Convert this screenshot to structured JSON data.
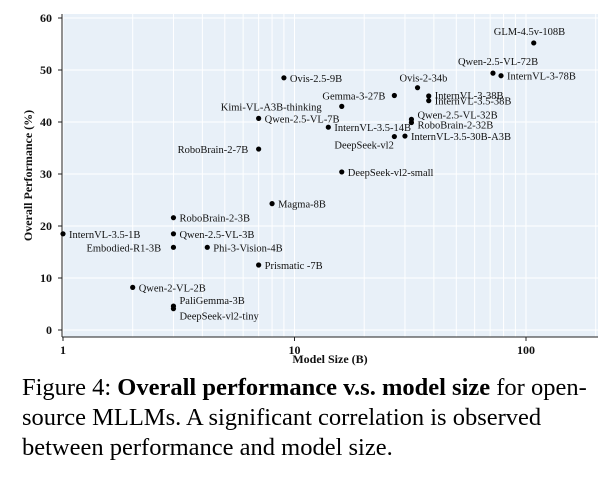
{
  "chart_data": {
    "type": "scatter",
    "xscale": "log",
    "xlabel": "Model Size (B)",
    "ylabel": "Overall Performance (%)",
    "xlim": [
      1,
      200
    ],
    "ylim": [
      0,
      60
    ],
    "xticks": [
      1,
      10,
      100
    ],
    "xtick_labels": [
      "1",
      "10",
      "100"
    ],
    "yticks": [
      0,
      10,
      20,
      30,
      40,
      50,
      60
    ],
    "ytick_labels": [
      "0",
      "10",
      "20",
      "30",
      "40",
      "50",
      "60"
    ],
    "grid": true,
    "points": [
      {
        "name": "GLM-4.5v-108B",
        "x": 108,
        "y": 55.2
      },
      {
        "name": "Qwen-2.5-VL-72B",
        "x": 72,
        "y": 49.4
      },
      {
        "name": "InternVL-3-78B",
        "x": 78,
        "y": 48.9
      },
      {
        "name": "Ovis-2.5-9B",
        "x": 9,
        "y": 48.5
      },
      {
        "name": "Ovis-2-34b",
        "x": 34,
        "y": 46.6
      },
      {
        "name": "Gemma-3-27B",
        "x": 27,
        "y": 45.1
      },
      {
        "name": "InternVL-3-38B",
        "x": 38,
        "y": 45.0
      },
      {
        "name": "InternVL-3.5-38B",
        "x": 38,
        "y": 44.1
      },
      {
        "name": "Kimi-VL-A3B-thinking",
        "x": 16,
        "y": 43.0
      },
      {
        "name": "Qwen-2.5-VL-7B",
        "x": 7,
        "y": 40.7
      },
      {
        "name": "Qwen-2.5-VL-32B",
        "x": 32,
        "y": 40.5
      },
      {
        "name": "RoboBrain-2-32B",
        "x": 32,
        "y": 39.9
      },
      {
        "name": "InternVL-3.5-14B",
        "x": 14,
        "y": 39.0
      },
      {
        "name": "InternVL-3.5-30B-A3B",
        "x": 30,
        "y": 37.3
      },
      {
        "name": "DeepSeek-vl2",
        "x": 27,
        "y": 37.2
      },
      {
        "name": "RoboBrain-2-7B",
        "x": 7,
        "y": 34.8
      },
      {
        "name": "DeepSeek-vl2-small",
        "x": 16,
        "y": 30.4
      },
      {
        "name": "Magma-8B",
        "x": 8,
        "y": 24.3
      },
      {
        "name": "RoboBrain-2-3B",
        "x": 3,
        "y": 21.6
      },
      {
        "name": "InternVL-3.5-1B",
        "x": 1,
        "y": 18.5
      },
      {
        "name": "Qwen-2.5-VL-3B",
        "x": 3,
        "y": 18.5
      },
      {
        "name": "Embodied-R1-3B",
        "x": 3,
        "y": 15.9
      },
      {
        "name": "Phi-3-Vision-4B",
        "x": 4.2,
        "y": 15.9
      },
      {
        "name": "Prismatic -7B",
        "x": 7,
        "y": 12.5
      },
      {
        "name": "Qwen-2-VL-2B",
        "x": 2,
        "y": 8.2
      },
      {
        "name": "PaliGemma-3B",
        "x": 3,
        "y": 4.6
      },
      {
        "name": "DeepSeek-vl2-tiny",
        "x": 3,
        "y": 4.1
      }
    ]
  },
  "caption": {
    "prefix": "Figure 4: ",
    "bold": "Overall performance v.s.  model size",
    "rest": " for open-source MLLMs. A significant correlation is observed between performance and model size."
  },
  "colors": {
    "plot_bg": "#e8f0f8",
    "grid": "#ffffff",
    "point": "#000000",
    "axis": "#222222"
  }
}
